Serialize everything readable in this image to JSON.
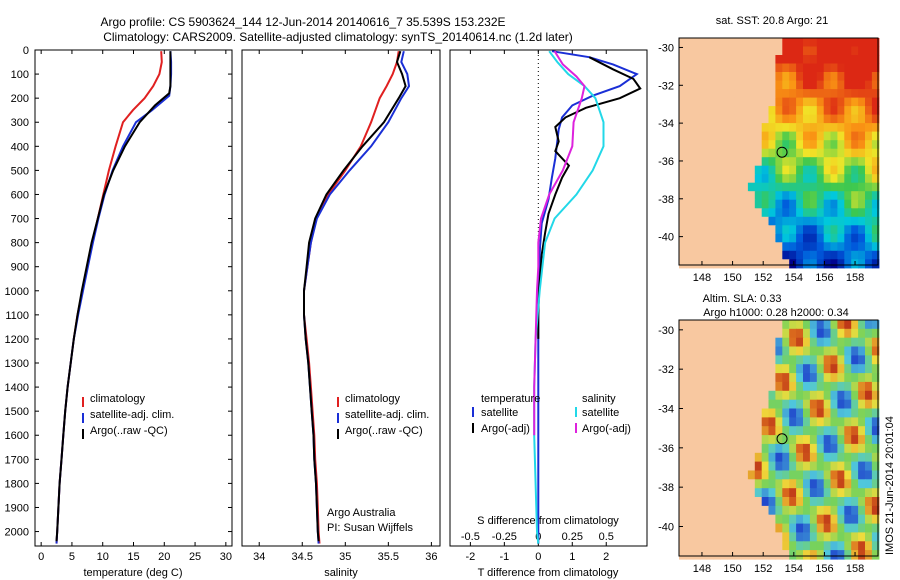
{
  "header": {
    "line1": "Argo profile: CS 5903624_144 12-Jun-2014 20140616_7 35.539S 153.232E",
    "line2": "Climatology: CARS2009. Satellite-adjusted climatology: synTS_20140614.nc (1.2d later)"
  },
  "colors": {
    "climatology": "#e02020",
    "satellite": "#1a2fd6",
    "argo": "#000000",
    "satellite_s": "#22d8e8",
    "argo_s": "#dd22dd",
    "land": "#f8c8a0"
  },
  "depth_axis": {
    "ticks": [
      "0",
      "100",
      "200",
      "300",
      "400",
      "500",
      "600",
      "700",
      "800",
      "900",
      "1000",
      "1100",
      "1200",
      "1300",
      "1400",
      "1500",
      "1600",
      "1700",
      "1800",
      "1900",
      "2000"
    ],
    "ylim": [
      0,
      2060
    ]
  },
  "chart_data": [
    {
      "type": "line",
      "id": "temperature",
      "xlabel": "temperature (deg C)",
      "xlim": [
        -1,
        31
      ],
      "xticks": [
        "0",
        "5",
        "10",
        "15",
        "20",
        "25",
        "30"
      ],
      "legend": [
        "climatology",
        "satellite-adj. clim.",
        "Argo(..raw -QC)"
      ],
      "series": [
        {
          "name": "climatology",
          "points": [
            [
              19.5,
              5
            ],
            [
              19.6,
              50
            ],
            [
              19.2,
              100
            ],
            [
              18.2,
              150
            ],
            [
              16.8,
              200
            ],
            [
              14.9,
              250
            ],
            [
              13.3,
              300
            ],
            [
              12.1,
              400
            ],
            [
              11.0,
              500
            ],
            [
              10.1,
              600
            ],
            [
              9.2,
              700
            ],
            [
              8.3,
              800
            ],
            [
              7.5,
              900
            ],
            [
              6.7,
              1000
            ],
            [
              5.9,
              1100
            ],
            [
              5.3,
              1200
            ],
            [
              4.8,
              1300
            ],
            [
              4.3,
              1400
            ],
            [
              3.9,
              1500
            ],
            [
              3.6,
              1600
            ],
            [
              3.3,
              1700
            ],
            [
              3.0,
              1800
            ],
            [
              2.8,
              1900
            ],
            [
              2.6,
              2000
            ],
            [
              2.5,
              2050
            ]
          ]
        },
        {
          "name": "satellite-adj. clim.",
          "points": [
            [
              21.0,
              5
            ],
            [
              21.1,
              50
            ],
            [
              21.1,
              100
            ],
            [
              21.0,
              150
            ],
            [
              20.8,
              190
            ],
            [
              18.0,
              250
            ],
            [
              15.4,
              300
            ],
            [
              13.3,
              400
            ],
            [
              11.6,
              500
            ],
            [
              10.3,
              600
            ],
            [
              9.3,
              700
            ],
            [
              8.4,
              800
            ],
            [
              7.6,
              900
            ],
            [
              6.8,
              1000
            ],
            [
              6.0,
              1100
            ],
            [
              5.3,
              1200
            ],
            [
              4.8,
              1300
            ],
            [
              4.3,
              1400
            ],
            [
              3.9,
              1500
            ],
            [
              3.6,
              1600
            ],
            [
              3.3,
              1700
            ],
            [
              3.0,
              1800
            ],
            [
              2.8,
              1900
            ],
            [
              2.6,
              2000
            ],
            [
              2.5,
              2050
            ]
          ]
        },
        {
          "name": "Argo(..raw -QC)",
          "points": [
            [
              21.0,
              5
            ],
            [
              21.0,
              50
            ],
            [
              21.0,
              100
            ],
            [
              21.0,
              150
            ],
            [
              20.8,
              180
            ],
            [
              18.5,
              230
            ],
            [
              16.0,
              300
            ],
            [
              13.6,
              400
            ],
            [
              11.7,
              500
            ],
            [
              10.2,
              600
            ],
            [
              9.2,
              700
            ],
            [
              8.2,
              800
            ],
            [
              7.4,
              900
            ],
            [
              6.6,
              1000
            ],
            [
              5.9,
              1100
            ],
            [
              5.3,
              1200
            ],
            [
              4.8,
              1300
            ],
            [
              4.3,
              1400
            ],
            [
              3.9,
              1500
            ],
            [
              3.6,
              1600
            ],
            [
              3.3,
              1700
            ],
            [
              3.0,
              1800
            ],
            [
              2.8,
              1900
            ],
            [
              2.6,
              2000
            ],
            [
              2.5,
              2040
            ]
          ]
        }
      ]
    },
    {
      "type": "line",
      "id": "salinity",
      "xlabel": "salinity",
      "xlim": [
        33.8,
        36.1
      ],
      "xticks": [
        "34",
        "34.5",
        "35",
        "35.5",
        "36"
      ],
      "legend": [
        "climatology",
        "satellite-adj. clim.",
        "Argo(..raw -QC)"
      ],
      "annotation": [
        "Argo Australia",
        "PI: Susan Wijffels"
      ],
      "series": [
        {
          "name": "climatology",
          "points": [
            [
              35.62,
              5
            ],
            [
              35.6,
              50
            ],
            [
              35.55,
              100
            ],
            [
              35.48,
              150
            ],
            [
              35.4,
              200
            ],
            [
              35.3,
              300
            ],
            [
              35.18,
              400
            ],
            [
              35.0,
              500
            ],
            [
              34.8,
              600
            ],
            [
              34.66,
              700
            ],
            [
              34.6,
              800
            ],
            [
              34.56,
              900
            ],
            [
              34.52,
              1000
            ],
            [
              34.52,
              1100
            ],
            [
              34.55,
              1200
            ],
            [
              34.58,
              1300
            ],
            [
              34.6,
              1400
            ],
            [
              34.62,
              1500
            ],
            [
              34.64,
              1600
            ],
            [
              34.65,
              1700
            ],
            [
              34.67,
              1800
            ],
            [
              34.68,
              1900
            ],
            [
              34.69,
              2000
            ],
            [
              34.7,
              2050
            ]
          ]
        },
        {
          "name": "satellite-adj. clim.",
          "points": [
            [
              35.68,
              5
            ],
            [
              35.65,
              50
            ],
            [
              35.72,
              100
            ],
            [
              35.74,
              150
            ],
            [
              35.65,
              200
            ],
            [
              35.5,
              300
            ],
            [
              35.3,
              400
            ],
            [
              35.05,
              500
            ],
            [
              34.82,
              600
            ],
            [
              34.67,
              700
            ],
            [
              34.6,
              800
            ],
            [
              34.56,
              900
            ],
            [
              34.52,
              1000
            ],
            [
              34.52,
              1100
            ],
            [
              34.54,
              1200
            ],
            [
              34.57,
              1300
            ],
            [
              34.59,
              1400
            ],
            [
              34.61,
              1500
            ],
            [
              34.63,
              1600
            ],
            [
              34.64,
              1700
            ],
            [
              34.66,
              1800
            ],
            [
              34.67,
              1900
            ],
            [
              34.68,
              2000
            ],
            [
              34.69,
              2050
            ]
          ]
        },
        {
          "name": "Argo(..raw -QC)",
          "points": [
            [
              35.64,
              5
            ],
            [
              35.6,
              50
            ],
            [
              35.66,
              100
            ],
            [
              35.7,
              150
            ],
            [
              35.62,
              200
            ],
            [
              35.45,
              300
            ],
            [
              35.2,
              400
            ],
            [
              34.98,
              500
            ],
            [
              34.78,
              600
            ],
            [
              34.65,
              700
            ],
            [
              34.58,
              800
            ],
            [
              34.55,
              900
            ],
            [
              34.52,
              1000
            ],
            [
              34.52,
              1100
            ],
            [
              34.54,
              1200
            ],
            [
              34.57,
              1300
            ],
            [
              34.59,
              1400
            ],
            [
              34.61,
              1500
            ],
            [
              34.63,
              1600
            ],
            [
              34.64,
              1700
            ],
            [
              34.66,
              1800
            ],
            [
              34.67,
              1900
            ],
            [
              34.68,
              2000
            ],
            [
              34.69,
              2040
            ]
          ]
        }
      ]
    },
    {
      "type": "line",
      "id": "difference",
      "xlabel_bottom": "T difference from climatology",
      "xlabel_top": "S difference from climatology",
      "t_xlim": [
        -2.6,
        3.2
      ],
      "t_xticks": [
        "-2",
        "-1",
        "0",
        "1",
        "2"
      ],
      "s_xticks": [
        "-0.5",
        "-0.25",
        "0",
        "0.25",
        "0.5"
      ],
      "legend_titles": [
        "temperature",
        "salinity"
      ],
      "legend_t": [
        "satellite",
        "Argo(-adj)"
      ],
      "legend_s": [
        "satellite",
        "Argo(-adj)"
      ],
      "series": [
        {
          "name": "satellite",
          "kind": "T",
          "points": [
            [
              0.4,
              5
            ],
            [
              1.5,
              30
            ],
            [
              2.2,
              60
            ],
            [
              2.9,
              100
            ],
            [
              2.4,
              150
            ],
            [
              1.6,
              190
            ],
            [
              1.0,
              230
            ],
            [
              0.7,
              280
            ],
            [
              0.6,
              330
            ],
            [
              0.5,
              450
            ],
            [
              0.4,
              530
            ],
            [
              0.3,
              620
            ],
            [
              0.1,
              720
            ],
            [
              0.05,
              820
            ],
            [
              0.0,
              1000
            ],
            [
              0.0,
              1300
            ],
            [
              0.0,
              1600
            ],
            [
              0.0,
              2000
            ],
            [
              0.0,
              2050
            ]
          ]
        },
        {
          "name": "Argo(-adj)",
          "kind": "T",
          "points": [
            [
              1.5,
              30
            ],
            [
              2.2,
              80
            ],
            [
              2.8,
              120
            ],
            [
              3.0,
              160
            ],
            [
              2.4,
              200
            ],
            [
              1.4,
              240
            ],
            [
              0.8,
              280
            ],
            [
              0.5,
              320
            ],
            [
              0.6,
              380
            ],
            [
              0.5,
              420
            ],
            [
              0.9,
              480
            ],
            [
              0.7,
              530
            ],
            [
              0.5,
              600
            ],
            [
              0.3,
              680
            ],
            [
              0.2,
              760
            ],
            [
              0.1,
              850
            ],
            [
              0.05,
              950
            ],
            [
              0.02,
              1000
            ],
            [
              0.0,
              1100
            ],
            [
              0.0,
              1200
            ]
          ]
        },
        {
          "name": "satellite",
          "kind": "S",
          "points": [
            [
              0.08,
              5
            ],
            [
              0.14,
              50
            ],
            [
              0.22,
              100
            ],
            [
              0.34,
              150
            ],
            [
              0.42,
              200
            ],
            [
              0.48,
              300
            ],
            [
              0.48,
              400
            ],
            [
              0.4,
              500
            ],
            [
              0.28,
              600
            ],
            [
              0.12,
              700
            ],
            [
              0.05,
              800
            ],
            [
              0.03,
              900
            ],
            [
              0.01,
              1000
            ],
            [
              -0.02,
              1200
            ],
            [
              -0.03,
              1400
            ],
            [
              -0.03,
              1600
            ],
            [
              -0.02,
              1800
            ],
            [
              -0.01,
              2000
            ],
            [
              0.0,
              2050
            ]
          ]
        },
        {
          "name": "Argo(-adj)",
          "kind": "S",
          "points": [
            [
              0.12,
              5
            ],
            [
              0.18,
              60
            ],
            [
              0.28,
              110
            ],
            [
              0.34,
              150
            ],
            [
              0.32,
              200
            ],
            [
              0.26,
              300
            ],
            [
              0.25,
              400
            ],
            [
              0.18,
              500
            ],
            [
              0.08,
              600
            ],
            [
              0.02,
              700
            ],
            [
              0.0,
              800
            ],
            [
              0.0,
              900
            ],
            [
              -0.01,
              1000
            ],
            [
              -0.02,
              1200
            ],
            [
              -0.03,
              1400
            ],
            [
              -0.03,
              1600
            ]
          ]
        }
      ]
    },
    {
      "type": "heatmap",
      "id": "sst_map",
      "title": "sat. SST: 20.8 Argo: 21",
      "xticks": [
        "148",
        "150",
        "152",
        "154",
        "156",
        "158"
      ],
      "yticks": [
        "-30",
        "-32",
        "-34",
        "-36",
        "-38",
        "-40"
      ],
      "xlim": [
        146.5,
        159.5
      ],
      "ylim": [
        -41.5,
        -29.5
      ],
      "float_position": {
        "lon": 153.232,
        "lat": -35.539
      }
    },
    {
      "type": "heatmap",
      "id": "sla_map",
      "title_line1": "Altim. SLA: 0.33",
      "title_line2": "Argo h1000: 0.28 h2000: 0.34",
      "xticks": [
        "148",
        "150",
        "152",
        "154",
        "156",
        "158"
      ],
      "yticks": [
        "-30",
        "-32",
        "-34",
        "-36",
        "-38",
        "-40"
      ],
      "xlim": [
        146.5,
        159.5
      ],
      "ylim": [
        -41.5,
        -29.5
      ],
      "float_position": {
        "lon": 153.232,
        "lat": -35.539
      }
    }
  ],
  "footer": {
    "imos_stamp": "IMOS 21-Jun-2014 20:01:04"
  }
}
